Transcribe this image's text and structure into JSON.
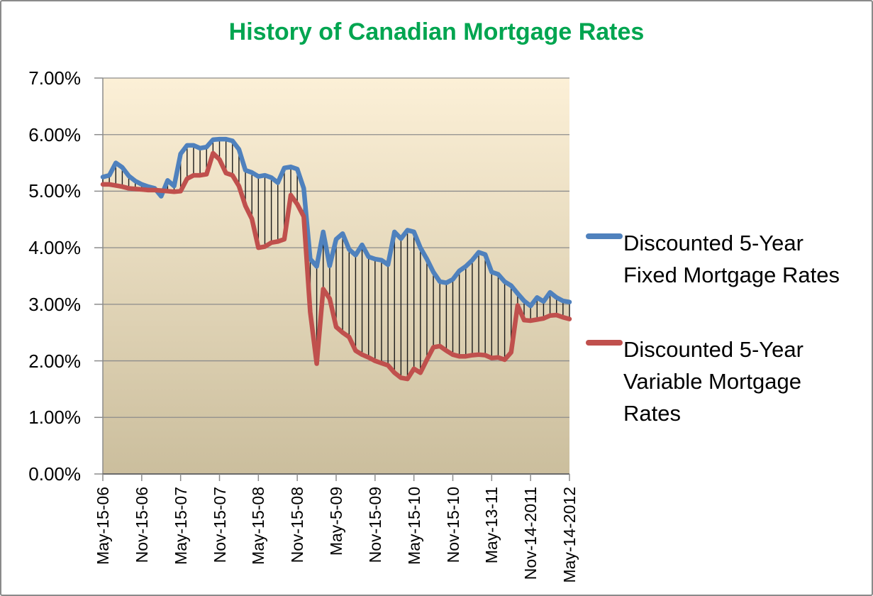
{
  "title": "History of Canadian Mortgage Rates",
  "title_color": "#00A550",
  "legend": {
    "items": [
      {
        "label": "Discounted 5-Year Fixed Mortgage Rates",
        "lines": [
          "Discounted 5-Year",
          "Fixed Mortgage Rates"
        ],
        "color": "#4F81BD"
      },
      {
        "label": "Discounted 5-Year Variable Mortgage Rates",
        "lines": [
          "Discounted 5-Year",
          "Variable Mortgage",
          "Rates"
        ],
        "color": "#C0504D"
      }
    ]
  },
  "chart_data": {
    "type": "line",
    "title": "History of Canadian Mortgage Rates",
    "xlabel": "",
    "ylabel": "",
    "ylim": [
      0,
      7
    ],
    "grid": "horizontal",
    "high_low_lines": true,
    "legend_position": "right",
    "plot_gradient_top": "#FCF0D7",
    "plot_gradient_bottom": "#CBBE9D",
    "y_tick_labels": [
      "0.00%",
      "1.00%",
      "2.00%",
      "3.00%",
      "4.00%",
      "5.00%",
      "6.00%",
      "7.00%"
    ],
    "x_tick_every": 6,
    "x_tick_labels": [
      "May-15-06",
      "Nov-15-06",
      "May-15-07",
      "Nov-15-07",
      "May-15-08",
      "Nov-15-08",
      "May-5-09",
      "Nov-15-09",
      "May-15-10",
      "Nov-15-10",
      "May-13-11",
      "Nov-14-2011",
      "May-14-2012"
    ],
    "series": [
      {
        "name": "Discounted 5-Year Fixed Mortgage Rates",
        "color": "#4F81BD",
        "values": [
          5.25,
          5.28,
          5.5,
          5.42,
          5.27,
          5.18,
          5.12,
          5.08,
          5.05,
          4.91,
          5.19,
          5.09,
          5.66,
          5.81,
          5.81,
          5.76,
          5.78,
          5.91,
          5.92,
          5.92,
          5.89,
          5.74,
          5.37,
          5.33,
          5.26,
          5.28,
          5.24,
          5.15,
          5.41,
          5.43,
          5.39,
          5.05,
          3.8,
          3.67,
          4.28,
          3.68,
          4.15,
          4.25,
          3.97,
          3.87,
          4.05,
          3.84,
          3.8,
          3.78,
          3.7,
          4.28,
          4.16,
          4.31,
          4.28,
          4.0,
          3.8,
          3.57,
          3.4,
          3.38,
          3.44,
          3.59,
          3.67,
          3.78,
          3.92,
          3.88,
          3.57,
          3.53,
          3.4,
          3.33,
          3.19,
          3.06,
          2.97,
          3.12,
          3.05,
          3.21,
          3.12,
          3.06,
          3.04
        ]
      },
      {
        "name": "Discounted 5-Year Variable Mortgage Rates",
        "color": "#C0504D",
        "values": [
          5.12,
          5.12,
          5.1,
          5.08,
          5.05,
          5.04,
          5.03,
          5.02,
          5.02,
          5.01,
          5.0,
          4.99,
          5.0,
          5.22,
          5.28,
          5.28,
          5.3,
          5.67,
          5.56,
          5.32,
          5.28,
          5.09,
          4.74,
          4.51,
          4.0,
          4.02,
          4.09,
          4.11,
          4.15,
          4.93,
          4.77,
          4.55,
          2.86,
          1.95,
          3.27,
          3.1,
          2.6,
          2.5,
          2.42,
          2.18,
          2.11,
          2.06,
          2.0,
          1.96,
          1.92,
          1.79,
          1.7,
          1.68,
          1.86,
          1.79,
          2.02,
          2.24,
          2.26,
          2.18,
          2.11,
          2.08,
          2.08,
          2.1,
          2.11,
          2.1,
          2.05,
          2.06,
          2.02,
          2.15,
          2.98,
          2.72,
          2.71,
          2.73,
          2.75,
          2.8,
          2.81,
          2.77,
          2.74
        ]
      }
    ]
  }
}
